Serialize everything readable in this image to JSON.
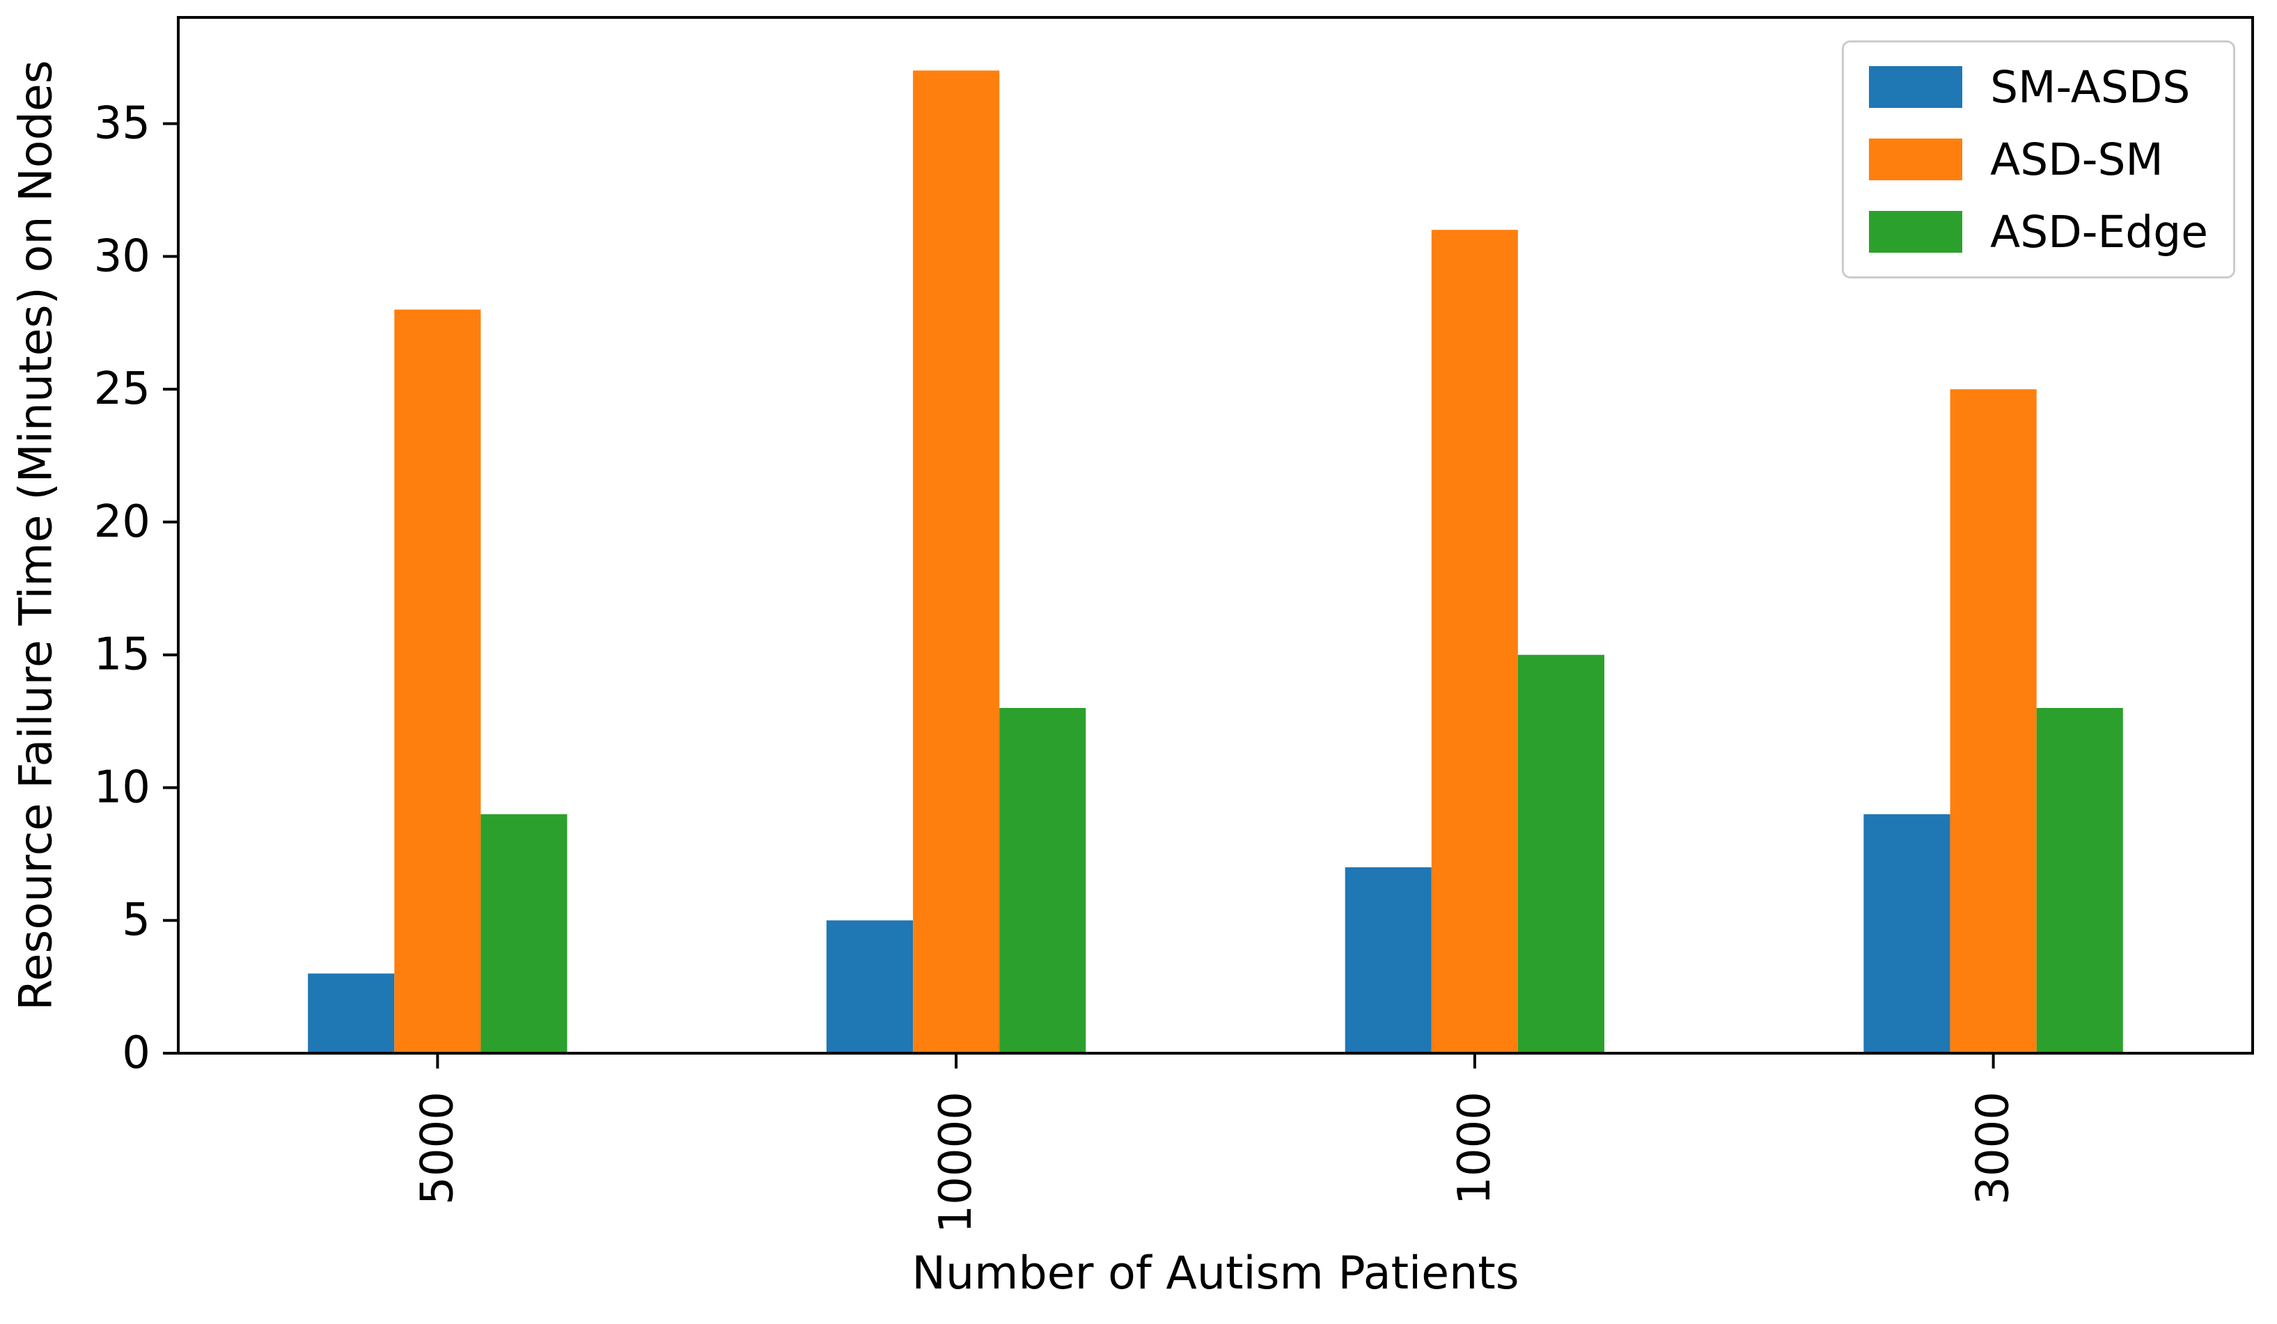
{
  "chart_data": {
    "type": "bar",
    "title": "",
    "xlabel": "Number of Autism Patients",
    "ylabel": "Resource Failure Time (Minutes) on Nodes",
    "categories": [
      "5000",
      "10000",
      "1000",
      "3000"
    ],
    "series": [
      {
        "name": "SM-ASDS",
        "color": "#1f77b4",
        "values": [
          3,
          5,
          7,
          9
        ]
      },
      {
        "name": "ASD-SM",
        "color": "#ff7f0e",
        "values": [
          28,
          37,
          31,
          25
        ]
      },
      {
        "name": "ASD-Edge",
        "color": "#2ca02c",
        "values": [
          9,
          13,
          15,
          13
        ]
      }
    ],
    "yticks": [
      0,
      5,
      10,
      15,
      20,
      25,
      30,
      35
    ],
    "ylim": [
      0,
      39
    ],
    "xtick_rotation": 90,
    "grid": false,
    "legend_position": "upper right",
    "spine_color": "#000000",
    "background_color": "#ffffff"
  }
}
